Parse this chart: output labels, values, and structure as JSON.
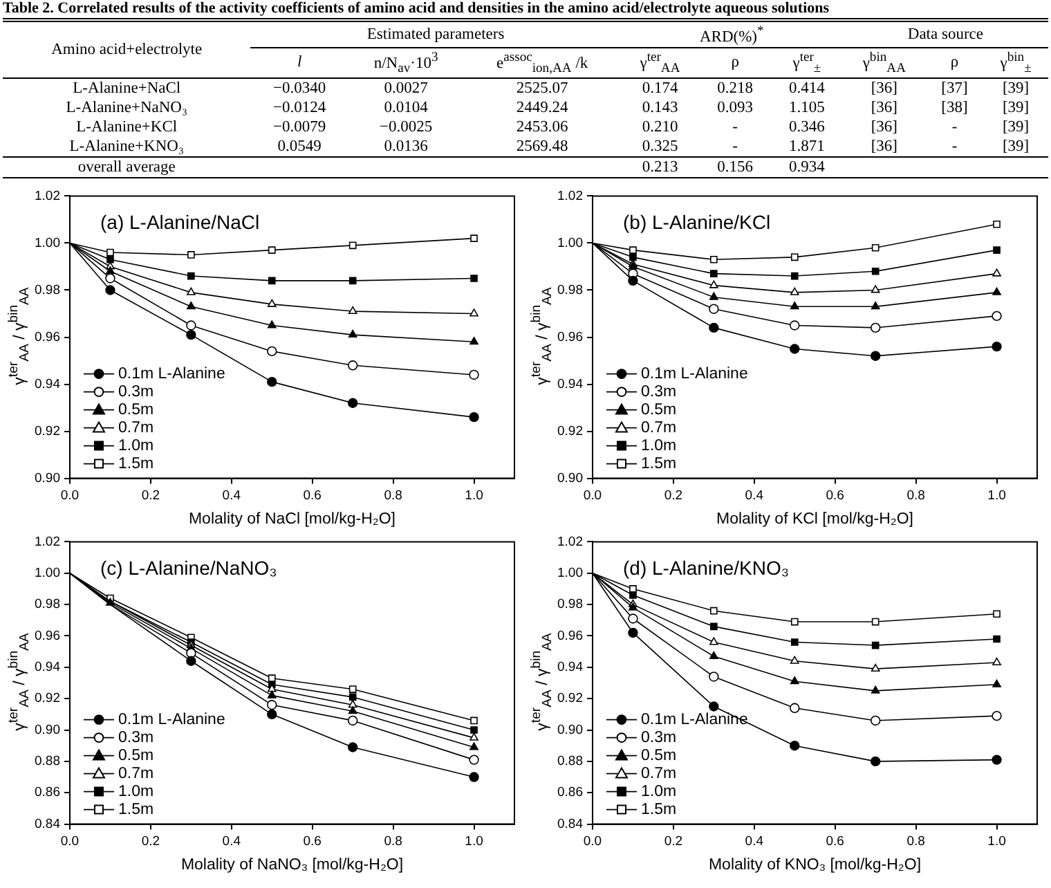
{
  "chart_data": [
    {
      "type": "other",
      "title": "Table 2. Correlated results of the activity coefficients of amino acid and densities in the amino acid/electrolyte aqueous solutions",
      "annotations": [
        "Amino acid+electrolyte",
        "Estimated parameters",
        "ARD(%)$^{*}$",
        "Data source",
        "l",
        "n/N$_{av}$·10$^{3}$",
        "e$^{assoc}$$_{ion,AA}$ /k",
        "γ$^{ter}$$_{AA}$",
        "ρ",
        "γ$^{ter}$$_{±}$",
        "γ$^{bin}$$_{AA}$",
        "ρ",
        "γ$^{bin}$$_{±}$",
        "L-Alanine+NaCl",
        "−0.0340",
        "0.0027",
        "2525.07",
        "0.174",
        "0.218",
        "0.414",
        "[36]",
        "[37]",
        "[39]",
        "L-Alanine+NaNO₃",
        "−0.0124",
        "0.0104",
        "2449.24",
        "0.143",
        "0.093",
        "1.105",
        "[36]",
        "[38]",
        "[39]",
        "L-Alanine+KCl",
        "−0.0079",
        "−0.0025",
        "2453.06",
        "0.210",
        "-",
        "0.346",
        "[36]",
        "-",
        "[39]",
        "L-Alanine+KNO₃",
        "0.0549",
        "0.0136",
        "2569.48",
        "0.325",
        "-",
        "1.871",
        "[36]",
        "-",
        "[39]",
        "overall average",
        "0.213",
        "0.156",
        "0.934"
      ]
    },
    {
      "type": "line",
      "title": "(a) L-Alanine/NaCl",
      "xlabel": "Molality of NaCl [mol/kg-H₂O]",
      "ylabel": "γ$^{ter}$$_{AA}$ / γ$^{bin}$$_{AA}$",
      "x": [
        0,
        0.1,
        0.3,
        0.5,
        0.7,
        1.0
      ],
      "xlim": [
        0,
        1.1
      ],
      "ylim": [
        0.9,
        1.02
      ],
      "xticks": [
        {
          "value": 0,
          "label": "0.0"
        },
        {
          "value": 0.2,
          "label": "0.2"
        },
        {
          "value": 0.4,
          "label": "0.4"
        },
        {
          "value": 0.6,
          "label": "0.6"
        },
        {
          "value": 0.8,
          "label": "0.8"
        },
        {
          "value": 1.0,
          "label": "1.0"
        }
      ],
      "yticks": [
        {
          "value": 0.9,
          "label": "0.90"
        },
        {
          "value": 0.92,
          "label": "0.92"
        },
        {
          "value": 0.94,
          "label": "0.94"
        },
        {
          "value": 0.96,
          "label": "0.96"
        },
        {
          "value": 0.98,
          "label": "0.98"
        },
        {
          "value": 1.0,
          "label": "1.00"
        },
        {
          "value": 1.02,
          "label": "1.02"
        }
      ],
      "legend": "bottom left",
      "grid": false,
      "series": [
        {
          "name": "0.1m L-Alanine",
          "color": "#000000",
          "marker": "circle",
          "values": [
            1.0,
            0.98,
            0.961,
            0.941,
            0.932,
            0.926
          ]
        },
        {
          "name": "0.3m",
          "color": "#000000",
          "marker": "circle",
          "values": [
            1.0,
            0.985,
            0.965,
            0.954,
            0.948,
            0.944
          ]
        },
        {
          "name": "0.5m",
          "color": "#000000",
          "marker": "triangle",
          "values": [
            1.0,
            0.988,
            0.973,
            0.965,
            0.961,
            0.958
          ]
        },
        {
          "name": "0.7m",
          "color": "#000000",
          "marker": "triangle",
          "values": [
            1.0,
            0.99,
            0.979,
            0.974,
            0.971,
            0.97
          ]
        },
        {
          "name": "1.0m",
          "color": "#000000",
          "marker": "square",
          "values": [
            1.0,
            0.993,
            0.986,
            0.984,
            0.984,
            0.985
          ]
        },
        {
          "name": "1.5m",
          "color": "#000000",
          "marker": "square",
          "values": [
            1.0,
            0.996,
            0.995,
            0.997,
            0.999,
            1.002
          ]
        }
      ]
    },
    {
      "type": "line",
      "title": "(b) L-Alanine/KCl",
      "xlabel": "Molality of KCl [mol/kg-H₂O]",
      "ylabel": "γ$^{ter}$$_{AA}$ / γ$^{bin}$$_{AA}$",
      "x": [
        0,
        0.1,
        0.3,
        0.5,
        0.7,
        1.0
      ],
      "xlim": [
        0,
        1.1
      ],
      "ylim": [
        0.9,
        1.02
      ],
      "xticks": [
        {
          "value": 0,
          "label": "0.0"
        },
        {
          "value": 0.2,
          "label": "0.2"
        },
        {
          "value": 0.4,
          "label": "0.4"
        },
        {
          "value": 0.6,
          "label": "0.6"
        },
        {
          "value": 0.8,
          "label": "0.8"
        },
        {
          "value": 1.0,
          "label": "1.0"
        }
      ],
      "yticks": [
        {
          "value": 0.9,
          "label": "0.90"
        },
        {
          "value": 0.92,
          "label": "0.92"
        },
        {
          "value": 0.94,
          "label": "0.94"
        },
        {
          "value": 0.96,
          "label": "0.96"
        },
        {
          "value": 0.98,
          "label": "0.98"
        },
        {
          "value": 1.0,
          "label": "1.00"
        },
        {
          "value": 1.02,
          "label": "1.02"
        }
      ],
      "legend": "bottom left",
      "grid": false,
      "series": [
        {
          "name": "0.1m L-Alanine",
          "color": "#000000",
          "marker": "circle",
          "values": [
            1.0,
            0.984,
            0.964,
            0.955,
            0.952,
            0.956
          ]
        },
        {
          "name": "0.3m",
          "color": "#000000",
          "marker": "circle",
          "values": [
            1.0,
            0.987,
            0.972,
            0.965,
            0.964,
            0.969
          ]
        },
        {
          "name": "0.5m",
          "color": "#000000",
          "marker": "triangle",
          "values": [
            1.0,
            0.99,
            0.977,
            0.973,
            0.973,
            0.979
          ]
        },
        {
          "name": "0.7m",
          "color": "#000000",
          "marker": "triangle",
          "values": [
            1.0,
            0.991,
            0.982,
            0.979,
            0.98,
            0.987
          ]
        },
        {
          "name": "1.0m",
          "color": "#000000",
          "marker": "square",
          "values": [
            1.0,
            0.994,
            0.987,
            0.986,
            0.988,
            0.997
          ]
        },
        {
          "name": "1.5m",
          "color": "#000000",
          "marker": "square",
          "values": [
            1.0,
            0.997,
            0.993,
            0.994,
            0.998,
            1.008
          ]
        }
      ]
    },
    {
      "type": "line",
      "title": "(c) L-Alanine/NaNO₃",
      "xlabel": "Molality of NaNO₃ [mol/kg-H₂O]",
      "ylabel": "γ$^{ter}$$_{AA}$ / γ$^{bin}$$_{AA}$",
      "x": [
        0,
        0.1,
        0.3,
        0.5,
        0.7,
        1.0
      ],
      "xlim": [
        0,
        1.1
      ],
      "ylim": [
        0.84,
        1.02
      ],
      "xticks": [
        {
          "value": 0,
          "label": "0.0"
        },
        {
          "value": 0.2,
          "label": "0.2"
        },
        {
          "value": 0.4,
          "label": "0.4"
        },
        {
          "value": 0.6,
          "label": "0.6"
        },
        {
          "value": 0.8,
          "label": "0.8"
        },
        {
          "value": 1.0,
          "label": "1.0"
        }
      ],
      "yticks": [
        {
          "value": 0.84,
          "label": "0.84"
        },
        {
          "value": 0.86,
          "label": "0.86"
        },
        {
          "value": 0.88,
          "label": "0.88"
        },
        {
          "value": 0.9,
          "label": "0.90"
        },
        {
          "value": 0.92,
          "label": "0.92"
        },
        {
          "value": 0.94,
          "label": "0.94"
        },
        {
          "value": 0.96,
          "label": "0.96"
        },
        {
          "value": 0.98,
          "label": "0.98"
        },
        {
          "value": 1.0,
          "label": "1.00"
        },
        {
          "value": 1.02,
          "label": "1.02"
        }
      ],
      "legend": "bottom left",
      "grid": false,
      "series": [
        {
          "name": "0.1m L-Alanine",
          "color": "#000000",
          "marker": "circle",
          "values": [
            1.0,
            0.98,
            0.944,
            0.91,
            0.889,
            0.87
          ]
        },
        {
          "name": "0.3m",
          "color": "#000000",
          "marker": "circle",
          "values": [
            1.0,
            0.98,
            0.949,
            0.916,
            0.906,
            0.881
          ]
        },
        {
          "name": "0.5m",
          "color": "#000000",
          "marker": "triangle",
          "values": [
            1.0,
            0.981,
            0.952,
            0.922,
            0.912,
            0.889
          ]
        },
        {
          "name": "0.7m",
          "color": "#000000",
          "marker": "triangle",
          "values": [
            1.0,
            0.982,
            0.954,
            0.926,
            0.916,
            0.895
          ]
        },
        {
          "name": "1.0m",
          "color": "#000000",
          "marker": "square",
          "values": [
            1.0,
            0.982,
            0.956,
            0.929,
            0.921,
            0.9
          ]
        },
        {
          "name": "1.5m",
          "color": "#000000",
          "marker": "square",
          "values": [
            1.0,
            0.984,
            0.959,
            0.933,
            0.926,
            0.906
          ]
        }
      ]
    },
    {
      "type": "line",
      "title": "(d) L-Alanine/KNO₃",
      "xlabel": "Molality of KNO₃ [mol/kg-H₂O]",
      "ylabel": "γ$^{ter}$$_{AA}$ / γ$^{bin}$$_{AA}$",
      "x": [
        0,
        0.1,
        0.3,
        0.5,
        0.7,
        1.0
      ],
      "xlim": [
        0,
        1.1
      ],
      "ylim": [
        0.84,
        1.02
      ],
      "xticks": [
        {
          "value": 0,
          "label": "0.0"
        },
        {
          "value": 0.2,
          "label": "0.2"
        },
        {
          "value": 0.4,
          "label": "0.4"
        },
        {
          "value": 0.6,
          "label": "0.6"
        },
        {
          "value": 0.8,
          "label": "0.8"
        },
        {
          "value": 1.0,
          "label": "1.0"
        }
      ],
      "yticks": [
        {
          "value": 0.84,
          "label": "0.84"
        },
        {
          "value": 0.86,
          "label": "0.86"
        },
        {
          "value": 0.88,
          "label": "0.88"
        },
        {
          "value": 0.9,
          "label": "0.90"
        },
        {
          "value": 0.92,
          "label": "0.92"
        },
        {
          "value": 0.94,
          "label": "0.94"
        },
        {
          "value": 0.96,
          "label": "0.96"
        },
        {
          "value": 0.98,
          "label": "0.98"
        },
        {
          "value": 1.0,
          "label": "1.00"
        },
        {
          "value": 1.02,
          "label": "1.02"
        }
      ],
      "legend": "bottom left",
      "grid": false,
      "series": [
        {
          "name": "0.1m L-Alanine",
          "color": "#000000",
          "marker": "circle",
          "values": [
            1.0,
            0.962,
            0.915,
            0.89,
            0.88,
            0.881
          ]
        },
        {
          "name": "0.3m",
          "color": "#000000",
          "marker": "circle",
          "values": [
            1.0,
            0.971,
            0.934,
            0.914,
            0.906,
            0.909
          ]
        },
        {
          "name": "0.5m",
          "color": "#000000",
          "marker": "triangle",
          "values": [
            1.0,
            0.978,
            0.947,
            0.931,
            0.925,
            0.929
          ]
        },
        {
          "name": "0.7m",
          "color": "#000000",
          "marker": "triangle",
          "values": [
            1.0,
            0.98,
            0.956,
            0.944,
            0.939,
            0.943
          ]
        },
        {
          "name": "1.0m",
          "color": "#000000",
          "marker": "square",
          "values": [
            1.0,
            0.986,
            0.966,
            0.956,
            0.954,
            0.958
          ]
        },
        {
          "name": "1.5m",
          "color": "#000000",
          "marker": "square",
          "values": [
            1.0,
            0.99,
            0.976,
            0.969,
            0.969,
            0.974
          ]
        }
      ]
    }
  ]
}
